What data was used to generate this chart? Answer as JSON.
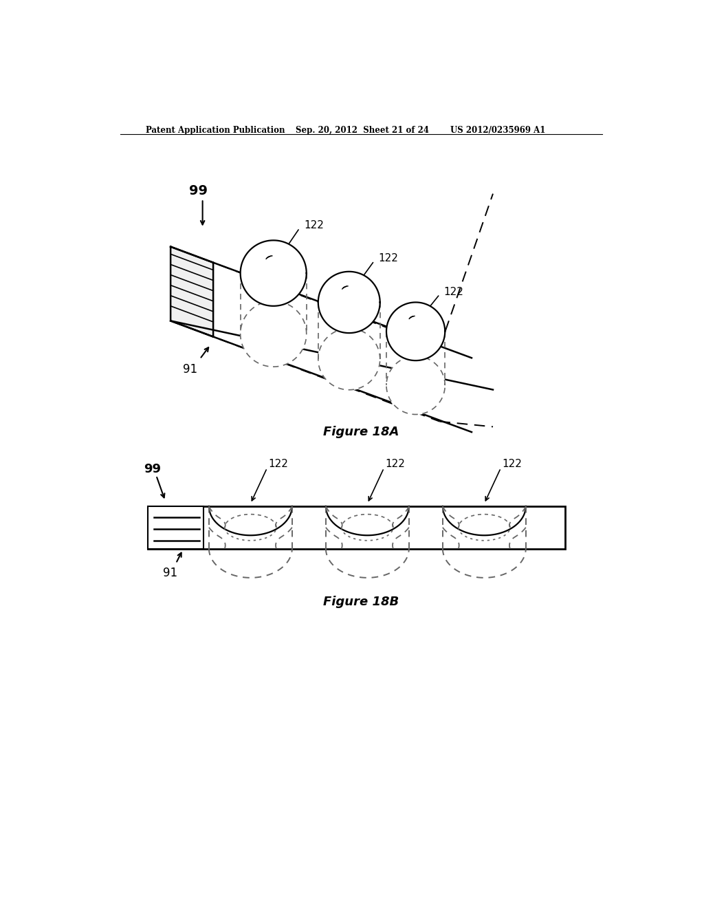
{
  "header_left": "Patent Application Publication",
  "header_mid": "Sep. 20, 2012  Sheet 21 of 24",
  "header_right": "US 2012/0235969 A1",
  "fig18a_caption": "Figure 18A",
  "fig18b_caption": "Figure 18B",
  "bg_color": "#ffffff",
  "line_color": "#000000",
  "dashed_color": "#666666"
}
